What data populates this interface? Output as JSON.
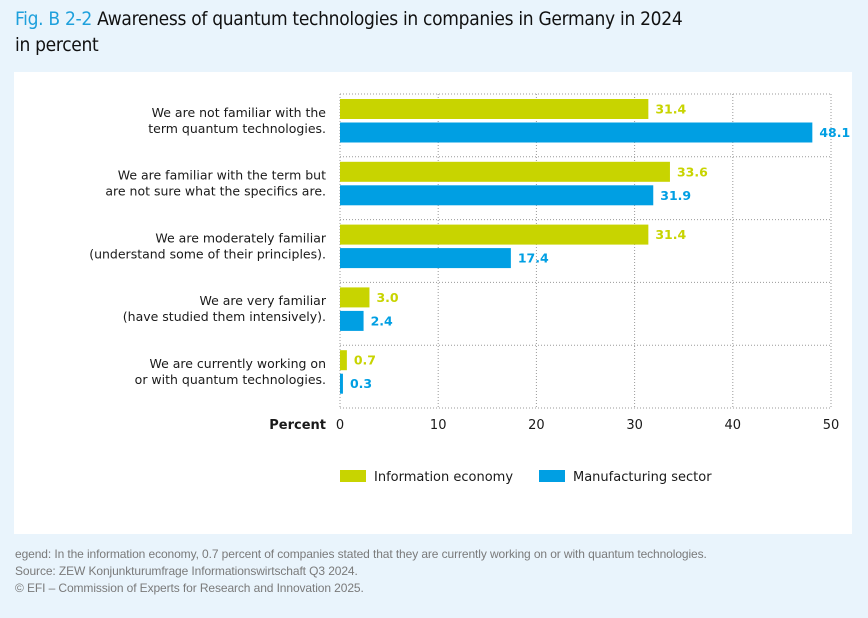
{
  "title": {
    "fig_label": "Fig. B 2-2",
    "text": "Awareness of quantum technologies in companies in Germany in 2024",
    "subtitle": "in percent"
  },
  "colors": {
    "accent": "#1ea0dc",
    "information_economy": "#c8d400",
    "manufacturing_sector": "#009fe3",
    "background": "#e9f4fc",
    "grid": "#9a9a9a"
  },
  "chart_data": {
    "type": "bar",
    "orientation": "horizontal",
    "title": "Awareness of quantum technologies in companies in Germany in 2024",
    "subtitle": "in percent",
    "xlabel": "Percent",
    "ylabel": "",
    "xlim": [
      0,
      50
    ],
    "xticks": [
      0,
      10,
      20,
      30,
      40,
      50
    ],
    "grid": true,
    "legend_position": "bottom",
    "categories": [
      [
        "We are not familiar with the",
        "term quantum technologies."
      ],
      [
        "We are familiar with the term but",
        "are not sure what the specifics are."
      ],
      [
        "We are moderately familiar",
        "(understand some of their principles)."
      ],
      [
        "We are very familiar",
        "(have studied them intensively)."
      ],
      [
        "We are currently working on",
        "or with quantum technologies."
      ]
    ],
    "series": [
      {
        "name": "Information economy",
        "color": "#c8d400",
        "values": [
          31.4,
          33.6,
          31.4,
          3.0,
          0.7
        ],
        "labels": [
          "31.4",
          "33.6",
          "31.4",
          "3.0",
          "0.7"
        ]
      },
      {
        "name": "Manufacturing sector",
        "color": "#009fe3",
        "values": [
          48.1,
          31.9,
          17.4,
          2.4,
          0.3
        ],
        "labels": [
          "48.1",
          "31.9",
          "17.4",
          "2.4",
          "0.3"
        ]
      }
    ]
  },
  "footnote": {
    "legend_note": "egend: In the information economy, 0.7 percent of companies stated that they are currently working on or with quantum technologies.",
    "source": "Source: ZEW Konjunkturumfrage Informationswirtschaft Q3 2024.",
    "copyright": "© EFI – Commission of Experts for Research and Innovation 2025."
  }
}
